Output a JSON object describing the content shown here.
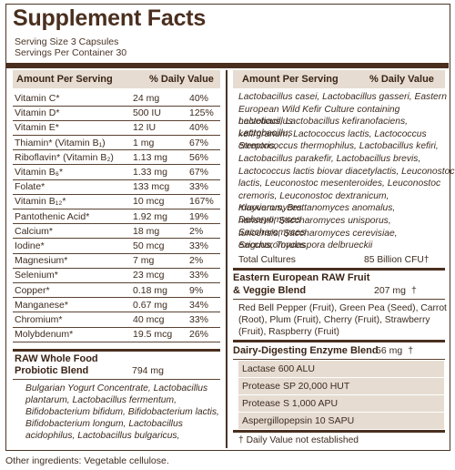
{
  "title": "Supplement Facts",
  "serving_size": "Serving Size  3 Capsules",
  "servings_per_container": "Servings Per Container  30",
  "left_header": {
    "amount": "Amount Per Serving",
    "dv": "% Daily Value"
  },
  "right_header": {
    "amount": "Amount Per Serving",
    "dv": "% Daily Value"
  },
  "nutrients": [
    {
      "name": "Vitamin C*",
      "amount": "24 mg",
      "dv": "40%"
    },
    {
      "name": "Vitamin D*",
      "amount": "500 IU",
      "dv": "125%"
    },
    {
      "name": "Vitamin E*",
      "amount": "12 IU",
      "dv": "40%"
    },
    {
      "name": "Thiamin* (Vitamin B₁)",
      "amount": "1 mg",
      "dv": "67%"
    },
    {
      "name": "Riboflavin* (Vitamin B₂)",
      "amount": "1.13 mg",
      "dv": "56%"
    },
    {
      "name": "Vitamin B₆*",
      "amount": "1.33 mg",
      "dv": "67%"
    },
    {
      "name": "Folate*",
      "amount": "133 mcg",
      "dv": "33%"
    },
    {
      "name": "Vitamin B₁₂*",
      "amount": "10 mcg",
      "dv": "167%"
    },
    {
      "name": "Pantothenic Acid*",
      "amount": "1.92 mg",
      "dv": "19%"
    },
    {
      "name": "Calcium*",
      "amount": "18 mg",
      "dv": "2%"
    },
    {
      "name": "Iodine*",
      "amount": "50 mcg",
      "dv": "33%"
    },
    {
      "name": "Magnesium*",
      "amount": "7 mg",
      "dv": "2%"
    },
    {
      "name": "Selenium*",
      "amount": "23 mcg",
      "dv": "33%"
    },
    {
      "name": "Copper*",
      "amount": "0.18 mg",
      "dv": "9%"
    },
    {
      "name": "Manganese*",
      "amount": "0.67 mg",
      "dv": "34%"
    },
    {
      "name": "Chromium*",
      "amount": "40 mcg",
      "dv": "33%"
    },
    {
      "name": "Molybdenum*",
      "amount": "19.5 mcg",
      "dv": "26%"
    }
  ],
  "probiotic_blend": {
    "title_line1": "RAW Whole Food",
    "title_line2": "Probiotic Blend",
    "amount": "794 mg",
    "lines": [
      "Bulgarian Yogurt Concentrate, Lactobacillus",
      "plantarum, Lactobacillus fermentum,",
      "Bifidobacterium bifidum, Bifidobacterium lactis,",
      "Bifidobacterium longum, Lactobacillus",
      "acidophilus, Lactobacillus bulgaricus,"
    ],
    "continued_lines": [
      "Lactobacillus casei, Lactobacillus gasseri, Eastern",
      "European Wild Kefir Culture containing Lactobacillus",
      "helveticus, Lactobacillus kefiranofaciens, Lactobacillus",
      "kefirgranum, Lactococcus lactis, Lactococcus cremoris,",
      "Streptococcus thermophilus, Lactobacillus kefiri,",
      "Lactobacillus parakefir, Lactobacillus brevis,",
      "Lactococcus lactis biovar diacetylactis, Leuconostoc",
      "lactis, Leuconostoc mesenteroides, Leuconostoc",
      "cremoris, Leuconostoc dextranicum, Kluyveromyces",
      "marxianus, Brettanomyces anomalus, Debaryomyces",
      "hansenii, Saccharomyces unisporus, Saccharomyces",
      "turicensis, Saccharomyces cerevisiae, Saccharomyces",
      "exiguus, Torulaspora delbrueckii"
    ],
    "total_label": "Total Cultures",
    "total_value": "85 Billion CFU†"
  },
  "fruit_blend": {
    "title_line1": "Eastern European RAW Fruit",
    "title_line2": "& Veggie Blend",
    "amount": "207 mg",
    "dagger": "†",
    "lines": [
      "Red Bell Pepper (Fruit), Green Pea (Seed), Carrot",
      "(Root), Plum (Fruit), Cherry (Fruit), Strawberry",
      "(Fruit), Raspberry (Fruit)"
    ]
  },
  "enzyme_blend": {
    "title": "Dairy-Digesting Enzyme Blend",
    "amount": "56 mg",
    "dagger": "†",
    "items": [
      "Lactase 600 ALU",
      "Protease SP 20,000 HUT",
      "Protease S 1,000 APU",
      "Aspergillopepsin 10 SAPU"
    ]
  },
  "footnote": "† Daily Value not established",
  "other_ingredients": "Other ingredients: Vegetable cellulose."
}
